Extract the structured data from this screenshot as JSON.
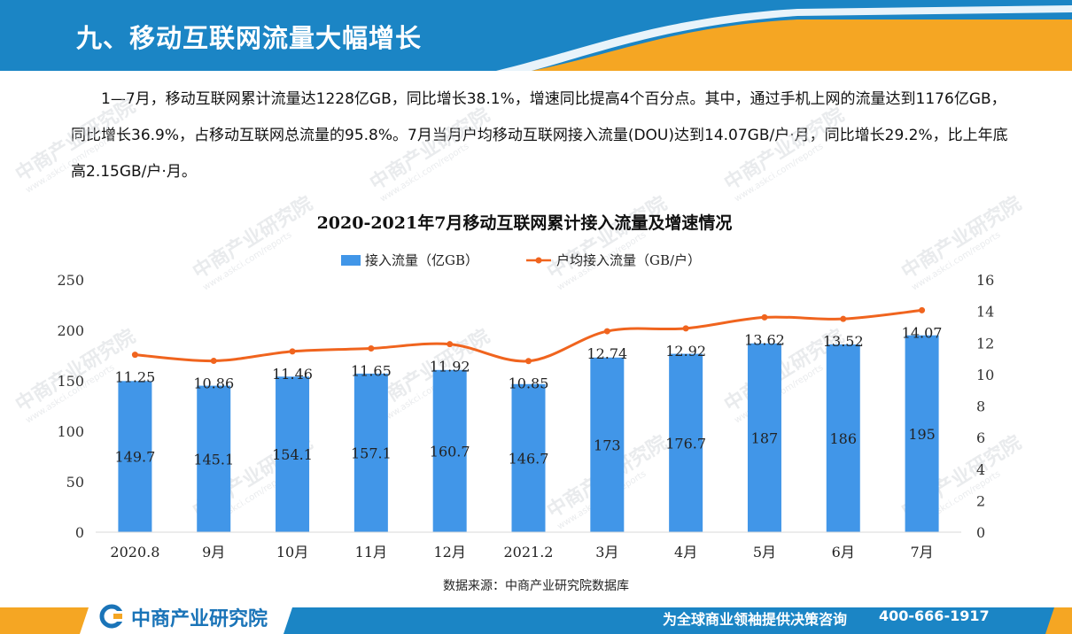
{
  "header": {
    "title": "九、移动互联网流量大幅增长"
  },
  "intro": {
    "line1": "1—7月，移动互联网累计流量达1228亿GB，同比增长38.1%，增速同比提高4个百分点。其中，通过手机上网的流量达到1176亿GB，同比增长36.9%，占移动互联网总流量的95.8%。7月当月户均移动互联网接入流量(DOU)达到14.07GB/户·月，同比增长29.2%，比上年底高2.15GB/户·月。"
  },
  "chart_data": {
    "type": "bar",
    "title": "2020-2021年7月移动互联网累计接入流量及增速情况",
    "categories": [
      "2020.8",
      "9月",
      "10月",
      "11月",
      "12月",
      "2021.2",
      "3月",
      "4月",
      "5月",
      "6月",
      "7月"
    ],
    "series": [
      {
        "name": "接入流量（亿GB）",
        "type": "bar",
        "axis": "left",
        "color": "#4196e8",
        "values": [
          149.7,
          145.1,
          154.1,
          157.1,
          160.7,
          146.7,
          173,
          176.7,
          187,
          186,
          195
        ],
        "labels": [
          "149.7",
          "145.1",
          "154.1",
          "157.1",
          "160.7",
          "146.7",
          "173",
          "176.7",
          "187",
          "186",
          "195"
        ]
      },
      {
        "name": "户均接入流量（GB/户）",
        "type": "line",
        "axis": "right",
        "color": "#f0641e",
        "values": [
          11.25,
          10.86,
          11.46,
          11.65,
          11.92,
          10.85,
          12.74,
          12.92,
          13.62,
          13.52,
          14.07
        ],
        "labels": [
          "11.25",
          "10.86",
          "11.46",
          "11.65",
          "11.92",
          "10.85",
          "12.74",
          "12.92",
          "13.62",
          "13.52",
          "14.07"
        ]
      }
    ],
    "y_left": {
      "min": 0,
      "max": 250,
      "ticks": [
        "0",
        "50",
        "100",
        "150",
        "200",
        "250"
      ]
    },
    "y_right": {
      "min": 0,
      "max": 16,
      "ticks": [
        "0",
        "2",
        "4",
        "6",
        "8",
        "10",
        "12",
        "14",
        "16"
      ]
    },
    "legend_position": "top-center",
    "grid": false
  },
  "source": {
    "text": "数据来源：中商产业研究院数据库"
  },
  "footer": {
    "logo_text": "中商产业研究院",
    "slogan": "为全球商业领袖提供决策咨询",
    "phone": "400-666-1917"
  },
  "watermark": {
    "text": "中商产业研究院",
    "url_text": "www.askci.com/reports"
  },
  "colors": {
    "banner_blue": "#1b85c5",
    "banner_orange": "#f5a623",
    "bar_blue": "#4196e8",
    "line_orange": "#f0641e"
  }
}
